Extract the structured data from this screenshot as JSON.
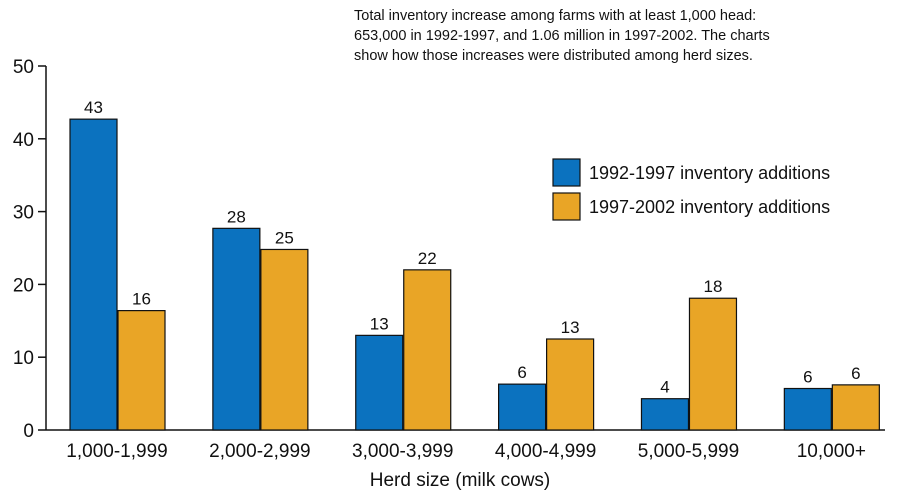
{
  "chart_data": {
    "type": "bar",
    "annotation_lines": [
      "Total inventory increase among farms with at least 1,000 head:",
      "653,000 in 1992-1997, and 1.06 million in 1997-2002. The charts",
      "show how those increases were distributed among herd sizes."
    ],
    "xlabel": "Herd size (milk cows)",
    "ylabel": "",
    "ylim": [
      0,
      50
    ],
    "yticks": [
      0,
      10,
      20,
      30,
      40,
      50
    ],
    "categories": [
      "1,000-1,999",
      "2,000-2,999",
      "3,000-3,999",
      "4,000-4,999",
      "5,000-5,999",
      "10,000+"
    ],
    "series": [
      {
        "name": "1992-1997 inventory additions",
        "color": "#0b72bf",
        "values": [
          42.7,
          27.7,
          13,
          6.3,
          4.3,
          5.7
        ],
        "labels": [
          "43",
          "28",
          "13",
          "6",
          "4",
          "6"
        ]
      },
      {
        "name": "1997-2002 inventory additions",
        "color": "#e9a526",
        "values": [
          16.4,
          24.8,
          22,
          12.5,
          18.1,
          6.2
        ],
        "labels": [
          "16",
          "25",
          "22",
          "13",
          "18",
          "6"
        ]
      }
    ],
    "grid": false,
    "legend_position": "right"
  }
}
